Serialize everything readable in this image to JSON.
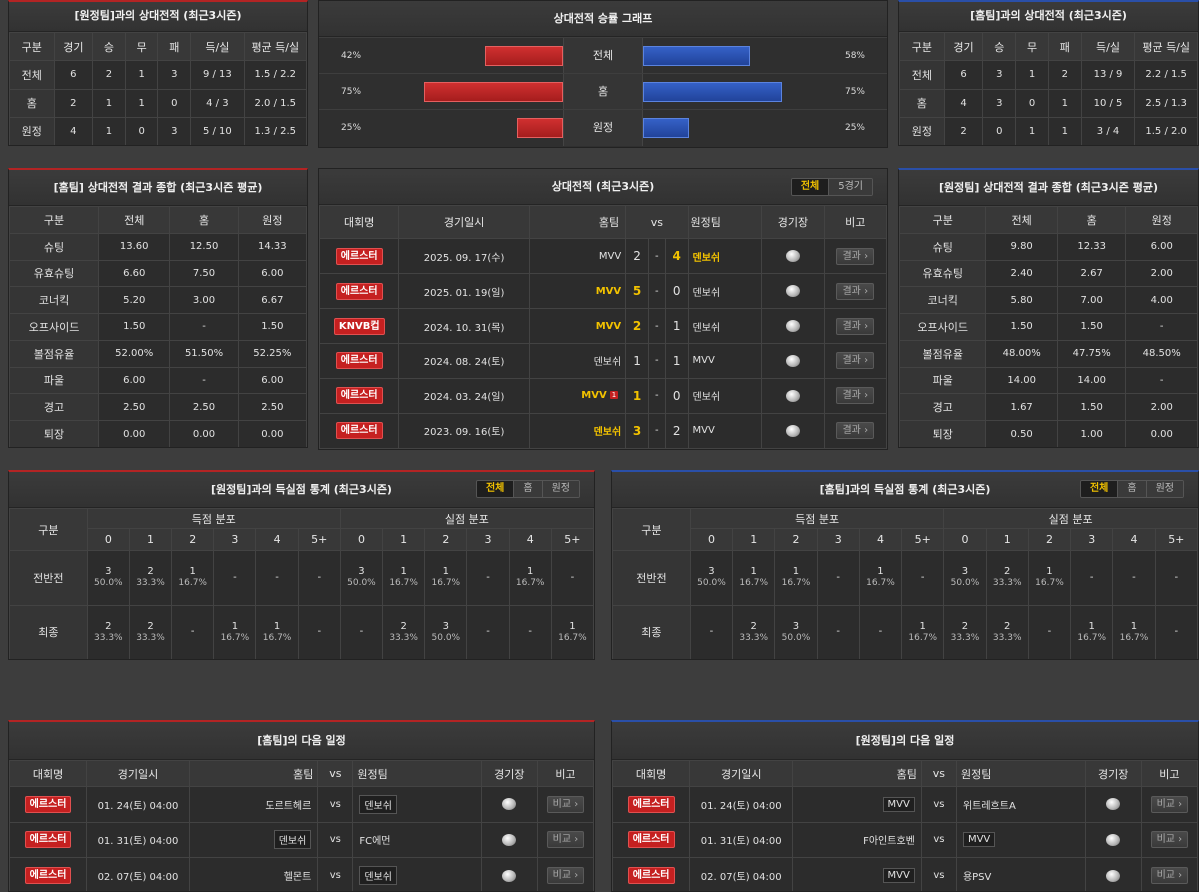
{
  "h2h_away": {
    "title": "[원정팀]과의 상대전적 (최근3시즌)",
    "headers": [
      "구분",
      "경기",
      "승",
      "무",
      "패",
      "득/실",
      "평균 득/실"
    ],
    "rows": [
      [
        "전체",
        "6",
        "2",
        "1",
        "3",
        "9 / 13",
        "1.5 / 2.2"
      ],
      [
        "홈",
        "2",
        "1",
        "1",
        "0",
        "4 / 3",
        "2.0 / 1.5"
      ],
      [
        "원정",
        "4",
        "1",
        "0",
        "3",
        "5 / 10",
        "1.3 / 2.5"
      ]
    ]
  },
  "graph": {
    "title": "상대전적 승률 그래프",
    "rows": [
      {
        "label": "전체",
        "left": "42%",
        "right": "58%",
        "lv": 42,
        "rv": 58
      },
      {
        "label": "홈",
        "left": "75%",
        "right": "75%",
        "lv": 75,
        "rv": 75
      },
      {
        "label": "원정",
        "left": "25%",
        "right": "25%",
        "lv": 25,
        "rv": 25
      }
    ]
  },
  "h2h_home": {
    "title": "[홈팀]과의 상대전적 (최근3시즌)",
    "headers": [
      "구분",
      "경기",
      "승",
      "무",
      "패",
      "득/실",
      "평균 득/실"
    ],
    "rows": [
      [
        "전체",
        "6",
        "3",
        "1",
        "2",
        "13 / 9",
        "2.2 / 1.5"
      ],
      [
        "홈",
        "4",
        "3",
        "0",
        "1",
        "10 / 5",
        "2.5 / 1.3"
      ],
      [
        "원정",
        "2",
        "0",
        "1",
        "1",
        "3 / 4",
        "1.5 / 2.0"
      ]
    ]
  },
  "summary_home": {
    "title": "[홈팀] 상대전적 결과 종합 (최근3시즌 평균)",
    "headers": [
      "구분",
      "전체",
      "홈",
      "원정"
    ],
    "rows": [
      [
        "슈팅",
        "13.60",
        "12.50",
        "14.33"
      ],
      [
        "유효슈팅",
        "6.60",
        "7.50",
        "6.00"
      ],
      [
        "코너킥",
        "5.20",
        "3.00",
        "6.67"
      ],
      [
        "오프사이드",
        "1.50",
        "-",
        "1.50"
      ],
      [
        "볼점유율",
        "52.00%",
        "51.50%",
        "52.25%"
      ],
      [
        "파울",
        "6.00",
        "-",
        "6.00"
      ],
      [
        "경고",
        "2.50",
        "2.50",
        "2.50"
      ],
      [
        "퇴장",
        "0.00",
        "0.00",
        "0.00"
      ]
    ]
  },
  "matches": {
    "title": "상대전적 (최근3시즌)",
    "tabs": [
      "전체",
      "5경기"
    ],
    "headers": {
      "league": "대회명",
      "date": "경기일시",
      "home": "홈팀",
      "vs": "vs",
      "away": "원정팀",
      "venue": "경기장",
      "note": "비고"
    },
    "btn": "결과",
    "rows": [
      {
        "league": "에르스터",
        "date": "2025. 09. 17(수)",
        "home": "MVV",
        "hs": "2",
        "as": "4",
        "away": "덴보쉬",
        "win": "away",
        "rank": ""
      },
      {
        "league": "에르스터",
        "date": "2025. 01. 19(일)",
        "home": "MVV",
        "hs": "5",
        "as": "0",
        "away": "덴보쉬",
        "win": "home",
        "rank": ""
      },
      {
        "league": "KNVB컵",
        "date": "2024. 10. 31(목)",
        "home": "MVV",
        "hs": "2",
        "as": "1",
        "away": "덴보쉬",
        "win": "home",
        "rank": ""
      },
      {
        "league": "에르스터",
        "date": "2024. 08. 24(토)",
        "home": "덴보쉬",
        "hs": "1",
        "as": "1",
        "away": "MVV",
        "win": "",
        "rank": ""
      },
      {
        "league": "에르스터",
        "date": "2024. 03. 24(일)",
        "home": "MVV",
        "hs": "1",
        "as": "0",
        "away": "덴보쉬",
        "win": "home",
        "rank": "1"
      },
      {
        "league": "에르스터",
        "date": "2023. 09. 16(토)",
        "home": "덴보쉬",
        "hs": "3",
        "as": "2",
        "away": "MVV",
        "win": "home",
        "rank": ""
      }
    ]
  },
  "summary_away": {
    "title": "[원정팀] 상대전적 결과 종합 (최근3시즌 평균)",
    "headers": [
      "구분",
      "전체",
      "홈",
      "원정"
    ],
    "rows": [
      [
        "슈팅",
        "9.80",
        "12.33",
        "6.00"
      ],
      [
        "유효슈팅",
        "2.40",
        "2.67",
        "2.00"
      ],
      [
        "코너킥",
        "5.80",
        "7.00",
        "4.00"
      ],
      [
        "오프사이드",
        "1.50",
        "1.50",
        "-"
      ],
      [
        "볼점유율",
        "48.00%",
        "47.75%",
        "48.50%"
      ],
      [
        "파울",
        "14.00",
        "14.00",
        "-"
      ],
      [
        "경고",
        "1.67",
        "1.50",
        "2.00"
      ],
      [
        "퇴장",
        "0.50",
        "1.00",
        "0.00"
      ]
    ]
  },
  "goals_away": {
    "title": "[원정팀]과의 득실점 통계 (최근3시즌)",
    "tabs": [
      "전체",
      "홈",
      "원정"
    ],
    "col_label": "구분",
    "scored": "득점 분포",
    "conceded": "실점 분포",
    "buckets": [
      "0",
      "1",
      "2",
      "3",
      "4",
      "5+"
    ],
    "rows": [
      {
        "label": "전반전",
        "cells": [
          [
            "3",
            "50.0%"
          ],
          [
            "2",
            "33.3%"
          ],
          [
            "1",
            "16.7%"
          ],
          [
            "-",
            ""
          ],
          [
            "-",
            ""
          ],
          [
            "-",
            ""
          ],
          [
            "3",
            "50.0%"
          ],
          [
            "1",
            "16.7%"
          ],
          [
            "1",
            "16.7%"
          ],
          [
            "-",
            ""
          ],
          [
            "1",
            "16.7%"
          ],
          [
            "-",
            ""
          ]
        ]
      },
      {
        "label": "최종",
        "cells": [
          [
            "2",
            "33.3%"
          ],
          [
            "2",
            "33.3%"
          ],
          [
            "-",
            ""
          ],
          [
            "1",
            "16.7%"
          ],
          [
            "1",
            "16.7%"
          ],
          [
            "-",
            ""
          ],
          [
            "-",
            ""
          ],
          [
            "2",
            "33.3%"
          ],
          [
            "3",
            "50.0%"
          ],
          [
            "-",
            ""
          ],
          [
            "-",
            ""
          ],
          [
            "1",
            "16.7%"
          ]
        ]
      }
    ]
  },
  "goals_home": {
    "title": "[홈팀]과의 득실점 통계 (최근3시즌)",
    "tabs": [
      "전체",
      "홈",
      "원정"
    ],
    "col_label": "구분",
    "scored": "득점 분포",
    "conceded": "실점 분포",
    "buckets": [
      "0",
      "1",
      "2",
      "3",
      "4",
      "5+"
    ],
    "rows": [
      {
        "label": "전반전",
        "cells": [
          [
            "3",
            "50.0%"
          ],
          [
            "1",
            "16.7%"
          ],
          [
            "1",
            "16.7%"
          ],
          [
            "-",
            ""
          ],
          [
            "1",
            "16.7%"
          ],
          [
            "-",
            ""
          ],
          [
            "3",
            "50.0%"
          ],
          [
            "2",
            "33.3%"
          ],
          [
            "1",
            "16.7%"
          ],
          [
            "-",
            ""
          ],
          [
            "-",
            ""
          ],
          [
            "-",
            ""
          ]
        ]
      },
      {
        "label": "최종",
        "cells": [
          [
            "-",
            ""
          ],
          [
            "2",
            "33.3%"
          ],
          [
            "3",
            "50.0%"
          ],
          [
            "-",
            ""
          ],
          [
            "-",
            ""
          ],
          [
            "1",
            "16.7%"
          ],
          [
            "2",
            "33.3%"
          ],
          [
            "2",
            "33.3%"
          ],
          [
            "-",
            ""
          ],
          [
            "1",
            "16.7%"
          ],
          [
            "1",
            "16.7%"
          ],
          [
            "-",
            ""
          ]
        ]
      }
    ]
  },
  "next_home": {
    "title": "[홈팀]의 다음 일정",
    "headers": {
      "league": "대회명",
      "date": "경기일시",
      "home": "홈팀",
      "vs": "vs",
      "away": "원정팀",
      "venue": "경기장",
      "note": "비고"
    },
    "btn": "비교",
    "rows": [
      {
        "league": "에르스터",
        "date": "01. 24(토) 04:00",
        "home": "도르트헤르",
        "away": "덴보쉬",
        "box": "away"
      },
      {
        "league": "에르스터",
        "date": "01. 31(토) 04:00",
        "home": "덴보쉬",
        "away": "FC에먼",
        "box": "home"
      },
      {
        "league": "에르스터",
        "date": "02. 07(토) 04:00",
        "home": "헬몬트",
        "away": "덴보쉬",
        "box": "away"
      }
    ]
  },
  "next_away": {
    "title": "[원정팀]의 다음 일정",
    "headers": {
      "league": "대회명",
      "date": "경기일시",
      "home": "홈팀",
      "vs": "vs",
      "away": "원정팀",
      "venue": "경기장",
      "note": "비고"
    },
    "btn": "비교",
    "rows": [
      {
        "league": "에르스터",
        "date": "01. 24(토) 04:00",
        "home": "MVV",
        "away": "위트레흐트A",
        "box": "home"
      },
      {
        "league": "에르스터",
        "date": "01. 31(토) 04:00",
        "home": "F아인트호벤",
        "away": "MVV",
        "box": "away"
      },
      {
        "league": "에르스터",
        "date": "02. 07(토) 04:00",
        "home": "MVV",
        "away": "용PSV",
        "box": "home"
      }
    ]
  }
}
